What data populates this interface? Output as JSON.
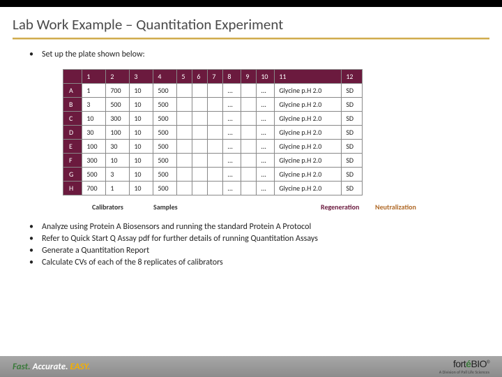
{
  "title": "Lab Work Example – Quantitation Experiment",
  "intro_bullet": "Set up the plate shown below:",
  "table": {
    "columns": [
      "",
      "1",
      "2",
      "3",
      "4",
      "5",
      "6",
      "7",
      "8",
      "9",
      "10",
      "11",
      "12"
    ],
    "rows": [
      [
        "A",
        "1",
        "700",
        "10",
        "500",
        "",
        "",
        "",
        "...",
        "",
        "...",
        "Glycine p.H 2.0",
        "SD"
      ],
      [
        "B",
        "3",
        "500",
        "10",
        "500",
        "",
        "",
        "",
        "...",
        "",
        "...",
        "Glycine p.H 2.0",
        "SD"
      ],
      [
        "C",
        "10",
        "300",
        "10",
        "500",
        "",
        "",
        "",
        "...",
        "",
        "...",
        "Glycine p.H 2.0",
        "SD"
      ],
      [
        "D",
        "30",
        "100",
        "10",
        "500",
        "",
        "",
        "",
        "...",
        "",
        "...",
        "Glycine p.H 2.0",
        "SD"
      ],
      [
        "E",
        "100",
        "30",
        "10",
        "500",
        "",
        "",
        "",
        "...",
        "",
        "...",
        "Glycine p.H 2.0",
        "SD"
      ],
      [
        "F",
        "300",
        "10",
        "10",
        "500",
        "",
        "",
        "",
        "...",
        "",
        "...",
        "Glycine p.H 2.0",
        "SD"
      ],
      [
        "G",
        "500",
        "3",
        "10",
        "500",
        "",
        "",
        "",
        "...",
        "",
        "...",
        "Glycine p.H 2.0",
        "SD"
      ],
      [
        "H",
        "700",
        "1",
        "10",
        "500",
        "",
        "",
        "",
        "...",
        "",
        "...",
        "Glycine p.H 2.0",
        "SD"
      ]
    ],
    "header_bg": "#6b1a3e",
    "header_fg": "#ffffff",
    "cell_bg": "#ffffff",
    "border_color": "#888888",
    "font_size": 10
  },
  "under_labels": {
    "calibrators": "Calibrators",
    "samples": "Samples",
    "regeneration": "Regeneration",
    "neutralization": "Neutralization"
  },
  "lower_bullets": [
    "Analyze using Protein A Biosensors and running the standard Protein A Protocol",
    "Refer to Quick Start Q Assay pdf for further details of running Quantitation Assays",
    "Generate a Quantitation Report",
    "Calculate CVs of each of the 8 replicates of calibrators"
  ],
  "footer": {
    "tagline_fast": "Fast.",
    "tagline_acc": "Accurate.",
    "tagline_easy": "EASY.",
    "logo_brand_pre": "fort",
    "logo_brand_e": "é",
    "logo_brand_post": "BIO",
    "logo_sub": "A Division of Pall Life Sciences"
  },
  "colors": {
    "title": "#4a4a4a",
    "accent_gold": "#c79a2a",
    "plum": "#6b1a3e",
    "orange": "#b06a28",
    "footer_grad_top": "#a7a7a7",
    "footer_grad_bot": "#8c8c8c"
  }
}
